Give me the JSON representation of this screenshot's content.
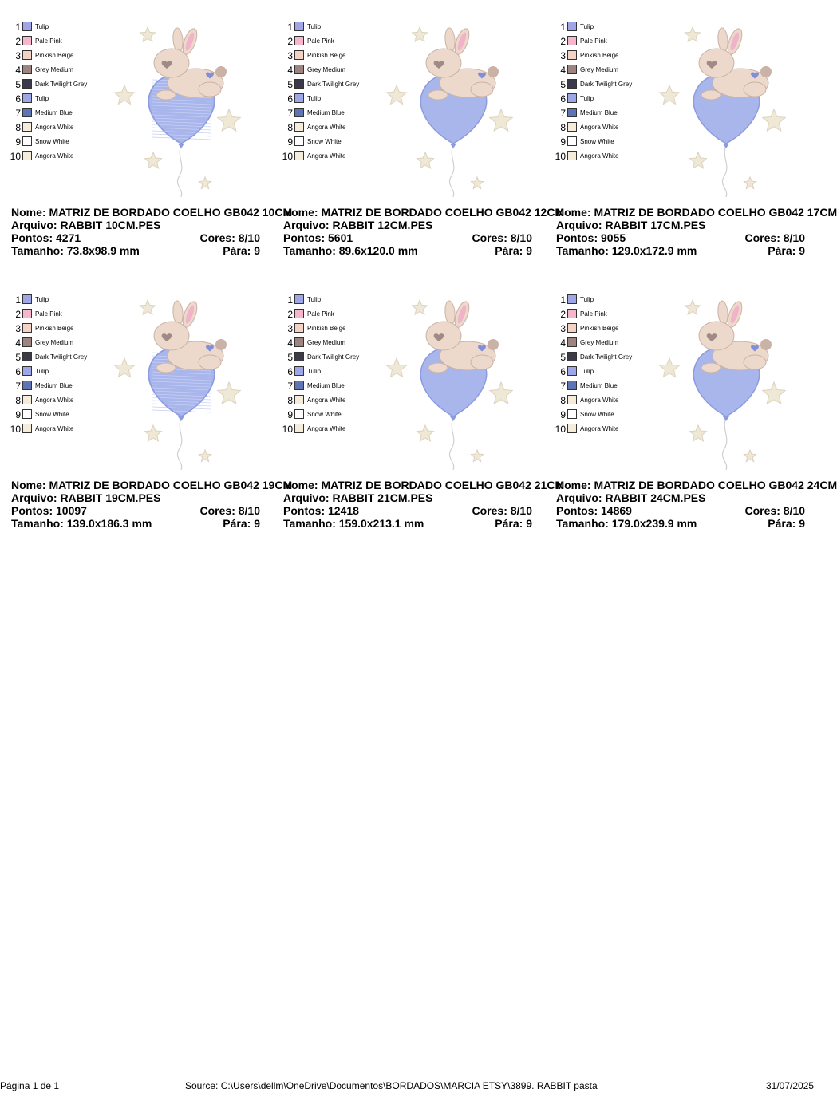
{
  "legend_colors": [
    {
      "num": "1",
      "name": "Tulip",
      "color": "#9fa6e8"
    },
    {
      "num": "2",
      "name": "Pale Pink",
      "color": "#f5b7cb"
    },
    {
      "num": "3",
      "name": "Pinkish Beige",
      "color": "#f3d3c4"
    },
    {
      "num": "4",
      "name": "Grey Medium",
      "color": "#9c8480"
    },
    {
      "num": "5",
      "name": "Dark Twilight Grey",
      "color": "#3c3a48"
    },
    {
      "num": "6",
      "name": "Tulip",
      "color": "#9fa6e8"
    },
    {
      "num": "7",
      "name": "Medium Blue",
      "color": "#5f74b4"
    },
    {
      "num": "8",
      "name": "Angora White",
      "color": "#f5ecd9"
    },
    {
      "num": "9",
      "name": "Snow White",
      "color": "#ffffff"
    },
    {
      "num": "10",
      "name": "Angora White",
      "color": "#f5ecd9"
    }
  ],
  "designs": [
    {
      "nome": "Nome: MATRIZ DE BORDADO COELHO GB042 10CM",
      "arquivo": "Arquivo: RABBIT 10CM.PES",
      "pontos": "Pontos: 4271",
      "cores": "Cores: 8/10",
      "tamanho": "Tamanho: 73.8x98.9 mm",
      "para": "Pára: 9",
      "balloon_style": "stitched"
    },
    {
      "nome": "Nome: MATRIZ DE BORDADO COELHO GB042 12CM",
      "arquivo": "Arquivo: RABBIT 12CM.PES",
      "pontos": "Pontos: 5601",
      "cores": "Cores: 8/10",
      "tamanho": "Tamanho: 89.6x120.0 mm",
      "para": "Pára: 9",
      "balloon_style": "solid"
    },
    {
      "nome": "Nome: MATRIZ DE BORDADO COELHO GB042 17CM",
      "arquivo": "Arquivo: RABBIT 17CM.PES",
      "pontos": "Pontos: 9055",
      "cores": "Cores: 8/10",
      "tamanho": "Tamanho: 129.0x172.9 mm",
      "para": "Pára: 9",
      "balloon_style": "solid"
    },
    {
      "nome": "Nome: MATRIZ DE BORDADO COELHO GB042 19CM",
      "arquivo": "Arquivo: RABBIT 19CM.PES",
      "pontos": "Pontos: 10097",
      "cores": "Cores: 8/10",
      "tamanho": "Tamanho: 139.0x186.3 mm",
      "para": "Pára: 9",
      "balloon_style": "stitched"
    },
    {
      "nome": "Nome: MATRIZ DE BORDADO COELHO GB042 21CM",
      "arquivo": "Arquivo: RABBIT 21CM.PES",
      "pontos": "Pontos: 12418",
      "cores": "Cores: 8/10",
      "tamanho": "Tamanho: 159.0x213.1 mm",
      "para": "Pára: 9",
      "balloon_style": "solid"
    },
    {
      "nome": "Nome: MATRIZ DE BORDADO COELHO GB042 24CM",
      "arquivo": "Arquivo: RABBIT 24CM.PES",
      "pontos": "Pontos: 14869",
      "cores": "Cores: 8/10",
      "tamanho": "Tamanho: 179.0x239.9 mm",
      "para": "Pára: 9",
      "balloon_style": "solid"
    }
  ],
  "footer": {
    "page": "Página 1 de 1",
    "source": "Source: C:\\Users\\dellm\\OneDrive\\Documentos\\BORDADOS\\MARCIA ETSY\\3899. RABBIT pasta",
    "date": "31/07/2025"
  },
  "colors": {
    "balloon_fill": "#a9b6ec",
    "balloon_stroke": "#8c9be0",
    "bunny_body": "#ecd9cc",
    "bunny_shadow": "#cbb2a6",
    "ear_inner": "#f0b3c8",
    "heart_blue": "#7f8fd8",
    "star_fill": "#efe8d6",
    "star_stroke": "#ddd3bd"
  }
}
